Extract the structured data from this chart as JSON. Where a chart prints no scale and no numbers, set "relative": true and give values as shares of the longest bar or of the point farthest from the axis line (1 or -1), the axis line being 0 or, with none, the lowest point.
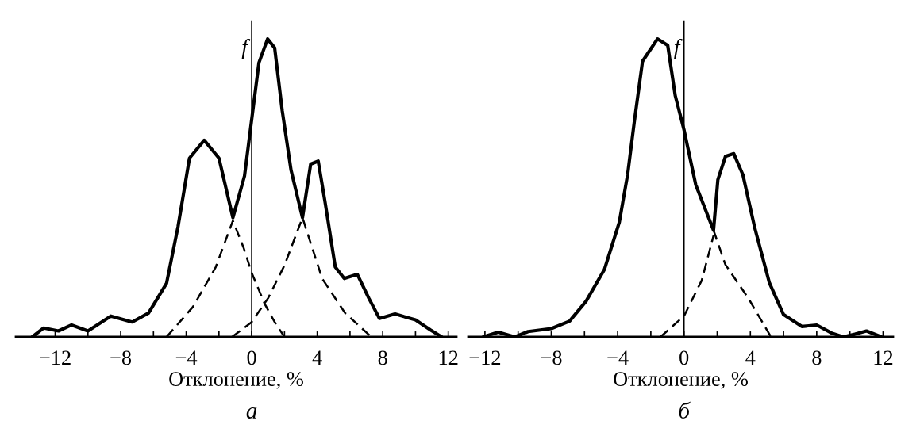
{
  "chart_data": [
    {
      "type": "line",
      "relative": true,
      "title": "а",
      "ref_lines": [
        {
          "axis": "x",
          "value": 0,
          "color": "#000000"
        }
      ],
      "xlabel": "Отклонение, %",
      "ylabel": "f",
      "xlim": [
        -14.4,
        12.5
      ],
      "xticks": [
        -12,
        {
          "value": -10,
          "label": null
        },
        -8,
        {
          "value": -6,
          "label": null
        },
        -4,
        {
          "value": -2,
          "label": null
        },
        0,
        {
          "value": 2,
          "label": null
        },
        4,
        {
          "value": 6,
          "label": null
        },
        8,
        {
          "value": 10,
          "label": null
        },
        12
      ],
      "grid": false,
      "legend": false,
      "marker": "none",
      "series": [
        {
          "color": "#000000",
          "line_style": "solid",
          "x": [
            -13.4,
            -12.7,
            -11.8,
            -11.0,
            -10.0,
            -8.6,
            -7.3,
            -6.3,
            -5.2,
            -4.5,
            -3.8,
            -2.9,
            -2.0,
            -1.15,
            -0.44,
            0,
            0.44,
            0.97,
            1.4,
            1.86,
            2.4,
            3.1,
            3.6,
            4.06,
            4.5,
            5.1,
            5.65,
            6.45,
            7.15,
            7.8,
            8.75,
            10.0,
            10.9,
            11.6
          ],
          "values": [
            0,
            0.03,
            0.02,
            0.04,
            0.02,
            0.07,
            0.05,
            0.08,
            0.18,
            0.37,
            0.6,
            0.66,
            0.6,
            0.4,
            0.54,
            0.73,
            0.92,
            1.0,
            0.97,
            0.76,
            0.56,
            0.4,
            0.58,
            0.59,
            0.445,
            0.235,
            0.196,
            0.21,
            0.13,
            0.062,
            0.077,
            0.057,
            0.024,
            0
          ]
        },
        {
          "color": "#000000",
          "line_style": "dashed",
          "x": [
            -5.2,
            -3.6,
            -2.2,
            -1.15,
            -0.5,
            0,
            0.8,
            1.4,
            2.0
          ],
          "values": [
            0,
            0.1,
            0.234,
            0.39,
            0.3,
            0.215,
            0.11,
            0.05,
            0
          ]
        },
        {
          "color": "#000000",
          "line_style": "dashed",
          "x": [
            -1.2,
            0,
            1.0,
            2.0,
            3.1,
            4.3,
            5.7,
            7.3
          ],
          "values": [
            0,
            0.05,
            0.13,
            0.24,
            0.4,
            0.196,
            0.08,
            0
          ]
        }
      ]
    },
    {
      "type": "line",
      "relative": true,
      "title": "б",
      "ref_lines": [
        {
          "axis": "x",
          "value": 0,
          "color": "#000000"
        }
      ],
      "xlabel": "Отклонение, %",
      "ylabel": "f",
      "xlim": [
        -13.0,
        12.6
      ],
      "xticks": [
        -12,
        {
          "value": -10,
          "label": null
        },
        -8,
        {
          "value": -6,
          "label": null
        },
        -4,
        {
          "value": -2,
          "label": null
        },
        0,
        {
          "value": 2,
          "label": null
        },
        4,
        {
          "value": 6,
          "label": null
        },
        8,
        {
          "value": 10,
          "label": null
        },
        12
      ],
      "grid": false,
      "legend": false,
      "marker": "none",
      "series": [
        {
          "color": "#000000",
          "line_style": "solid",
          "x": [
            -12.1,
            -11.2,
            -10.2,
            -9.4,
            -8.0,
            -6.9,
            -5.9,
            -4.8,
            -3.9,
            -3.4,
            -3.0,
            -2.5,
            -1.6,
            -0.98,
            -0.53,
            0,
            0.71,
            1.78,
            2.04,
            2.5,
            3.0,
            3.55,
            4.26,
            5.15,
            6.0,
            7.1,
            8.0,
            8.9,
            9.6,
            10.3,
            11.0,
            11.9
          ],
          "values": [
            0,
            0.016,
            0,
            0.018,
            0.028,
            0.053,
            0.12,
            0.226,
            0.385,
            0.544,
            0.72,
            0.925,
            1.0,
            0.978,
            0.81,
            0.695,
            0.51,
            0.358,
            0.527,
            0.606,
            0.615,
            0.544,
            0.367,
            0.181,
            0.075,
            0.035,
            0.04,
            0.013,
            0,
            0.009,
            0.02,
            0
          ]
        },
        {
          "color": "#000000",
          "line_style": "dashed",
          "x": [
            1.78,
            2.49,
            3.9,
            5.24
          ],
          "values": [
            0.358,
            0.243,
            0.128,
            0
          ]
        },
        {
          "color": "#000000",
          "line_style": "dashed",
          "x": [
            -1.42,
            0,
            1.07,
            1.78
          ],
          "values": [
            0,
            0.07,
            0.19,
            0.34
          ]
        }
      ]
    }
  ]
}
